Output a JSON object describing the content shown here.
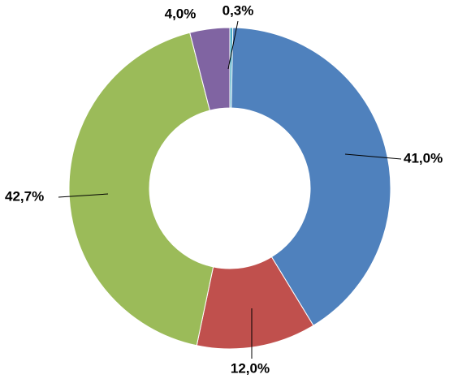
{
  "chart_data": {
    "type": "donut",
    "values": [
      0.3,
      41.0,
      12.0,
      42.7,
      4.0
    ],
    "value_labels": [
      "0,3%",
      "41,0%",
      "12,0%",
      "42,7%",
      "4,0%"
    ],
    "colors": [
      "#4bacc6",
      "#4f81bd",
      "#c0504d",
      "#9bbb59",
      "#8064a2"
    ]
  }
}
